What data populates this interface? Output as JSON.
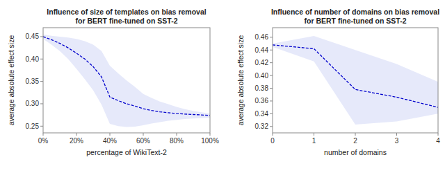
{
  "chart_data": [
    {
      "type": "line",
      "title": "Influence of size of templates on bias removal\nfor BERT fine-tuned on SST-2",
      "x_label": "percentage of WikiText-2",
      "y_label": "average absolute effect size",
      "x": [
        0,
        5,
        10,
        15,
        20,
        25,
        30,
        35,
        40,
        45,
        50,
        55,
        60,
        65,
        70,
        75,
        80,
        85,
        90,
        95,
        100
      ],
      "series": [
        {
          "type": "band",
          "color": "#c8cef5",
          "upper": [
            0.455,
            0.452,
            0.45,
            0.448,
            0.445,
            0.44,
            0.432,
            0.418,
            0.385,
            0.368,
            0.352,
            0.338,
            0.322,
            0.313,
            0.305,
            0.299,
            0.293,
            0.288,
            0.284,
            0.281,
            0.278
          ],
          "lower": [
            0.445,
            0.432,
            0.418,
            0.4,
            0.378,
            0.355,
            0.33,
            0.298,
            0.255,
            0.25,
            0.248,
            0.249,
            0.252,
            0.256,
            0.259,
            0.262,
            0.264,
            0.266,
            0.267,
            0.268,
            0.269
          ]
        },
        {
          "type": "line",
          "color": "#0000cc",
          "line_style": "dashed",
          "values": [
            0.45,
            0.443,
            0.435,
            0.425,
            0.413,
            0.4,
            0.383,
            0.36,
            0.315,
            0.307,
            0.3,
            0.295,
            0.289,
            0.285,
            0.282,
            0.28,
            0.278,
            0.277,
            0.276,
            0.275,
            0.274
          ]
        }
      ],
      "xlim": [
        0,
        100
      ],
      "xticks": [
        {
          "value": 0,
          "label": "0%"
        },
        {
          "value": 20,
          "label": "20%"
        },
        {
          "value": 40,
          "label": "40%"
        },
        {
          "value": 60,
          "label": "60%"
        },
        {
          "value": 80,
          "label": "80%"
        },
        {
          "value": 100,
          "label": "100%"
        }
      ],
      "ylim": [
        0.235,
        0.47
      ],
      "yticks": [
        0.25,
        {
          "value": 0.3,
          "label": "0.30"
        },
        0.35,
        {
          "value": 0.4,
          "label": "0.40"
        },
        0.45
      ],
      "grid": false
    },
    {
      "type": "line",
      "title": "Influence of number of domains on bias removal\nfor BERT fine-tuned on SST-2",
      "x_label": "number of domains",
      "y_label": "average absolute effect size",
      "x": [
        0,
        1,
        2,
        3,
        4
      ],
      "series": [
        {
          "type": "band",
          "color": "#c8cef5",
          "upper": [
            0.45,
            0.462,
            0.44,
            0.418,
            0.39
          ],
          "lower": [
            0.445,
            0.422,
            0.323,
            0.328,
            0.34
          ]
        },
        {
          "type": "line",
          "color": "#0000cc",
          "line_style": "dashed",
          "values": [
            0.448,
            0.442,
            0.378,
            0.366,
            0.35
          ]
        }
      ],
      "xlim": [
        0,
        4
      ],
      "xticks": [
        0,
        1,
        2,
        3,
        4
      ],
      "ylim": [
        0.31,
        0.475
      ],
      "yticks": [
        0.32,
        0.34,
        0.36,
        0.38,
        {
          "value": 0.4,
          "label": "0.40"
        },
        0.42,
        0.44,
        0.46
      ],
      "grid": false
    }
  ]
}
